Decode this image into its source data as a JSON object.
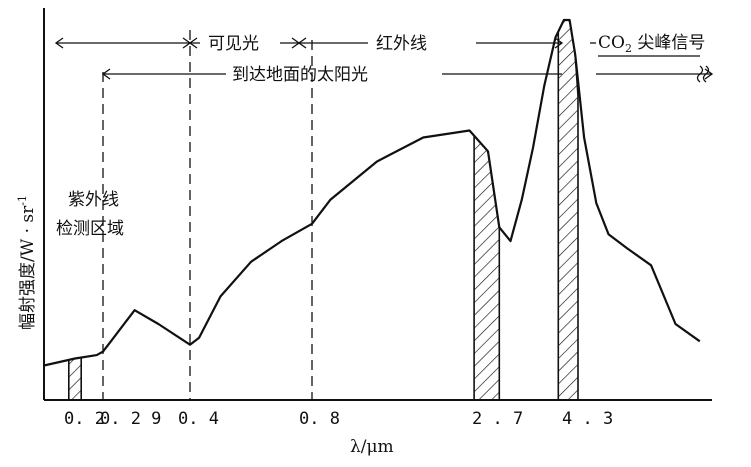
{
  "chart_data": {
    "type": "line",
    "xlabel": "λ/μm",
    "ylabel": "幅射强度/W · sr⁻¹",
    "x_ticks": [
      "0.2",
      "0.29",
      "0.4",
      "0.8",
      "2.7",
      "4.3"
    ],
    "series": [
      {
        "x": [
          0.15,
          0.2,
          0.27,
          0.29,
          0.3,
          0.33,
          0.36,
          0.4,
          0.43,
          0.5,
          0.6,
          0.7,
          0.8,
          1.0,
          1.5,
          2.0,
          2.5,
          2.7,
          2.9,
          3.1,
          3.3,
          3.5,
          3.7,
          3.9,
          4.05,
          4.15,
          4.25,
          4.35,
          4.45,
          4.55,
          4.7,
          4.9,
          5.1,
          5.3
        ],
        "y": [
          10,
          12,
          13,
          14,
          17,
          26,
          22,
          16,
          18,
          30,
          40,
          46,
          51,
          58,
          69,
          76,
          78,
          72,
          50,
          46,
          58,
          73,
          91,
          105,
          110,
          110,
          100,
          76,
          57,
          48,
          44,
          39,
          22,
          17
        ]
      }
    ],
    "shaded_bands": [
      {
        "from": 0.19,
        "to": 0.22
      },
      {
        "from": 2.55,
        "to": 2.9
      },
      {
        "from": 3.95,
        "to": 4.3
      }
    ],
    "annotations": {
      "visible": "可见光",
      "infrared": "红外线",
      "co2_prefix": "CO",
      "co2_sub": "2",
      "co2_suffix": " 尖峰信号",
      "solar": "到达地面的太阳光",
      "uv_line1": "紫外线",
      "uv_line2": "检测区域"
    },
    "ylabel_main": "幅射强度/W · sr",
    "ylabel_sup": "-1"
  }
}
